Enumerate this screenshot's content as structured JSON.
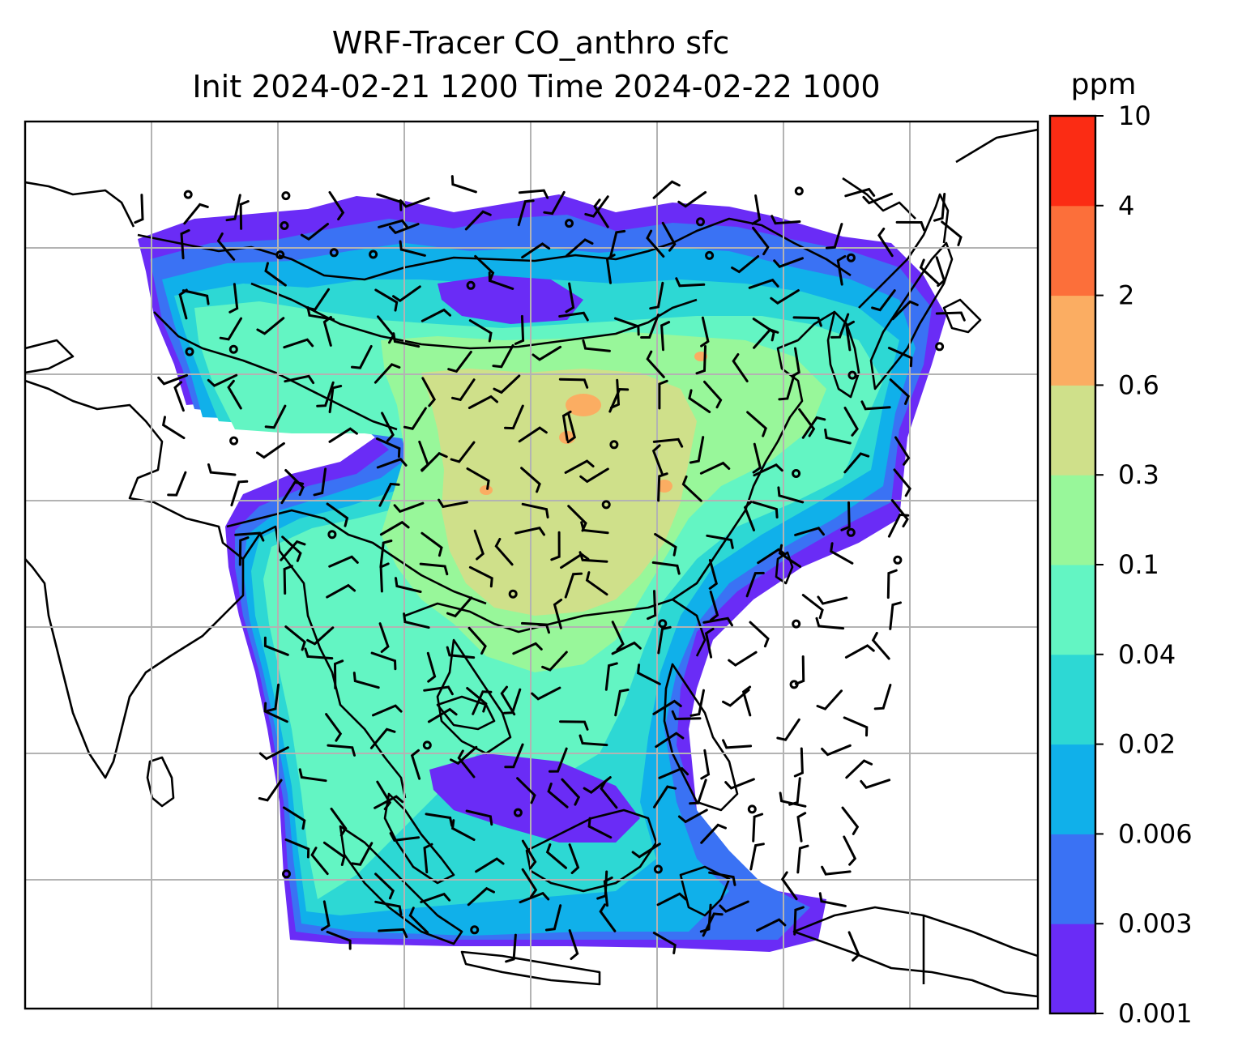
{
  "title": {
    "line1": "WRF-Tracer CO_anthro sfc",
    "line2": "Init 2024-02-21 1200 Time 2024-02-22 1000"
  },
  "colorbar": {
    "unit": "ppm",
    "levels": [
      "0.001",
      "0.003",
      "0.006",
      "0.02",
      "0.04",
      "0.1",
      "0.3",
      "0.6",
      "2",
      "4",
      "10"
    ],
    "colors": [
      "#6a2cf6",
      "#3a72f4",
      "#10b0ea",
      "#2dd8d4",
      "#63f5c3",
      "#98f79a",
      "#cfe08a",
      "#fbad62",
      "#fc6f3a",
      "#fb2c14"
    ]
  },
  "map": {
    "field": "CO_anthro",
    "level": "sfc",
    "gridlines": true,
    "wind_barbs": true,
    "coastlines": true,
    "background": "#ffffff",
    "gridline_color": "#b3b3b3"
  }
}
